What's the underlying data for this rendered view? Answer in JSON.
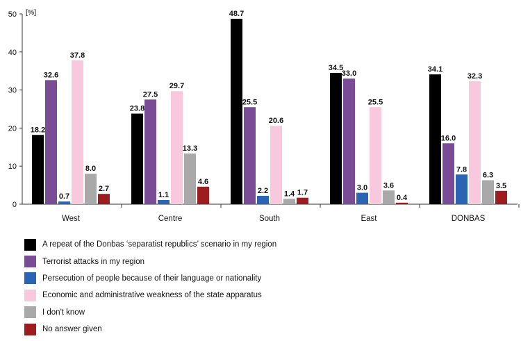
{
  "chart_data": {
    "type": "bar",
    "unit_label": "[%]",
    "categories": [
      "West",
      "Centre",
      "South",
      "East",
      "DONBAS"
    ],
    "ylim": [
      0,
      50
    ],
    "yticks": [
      0,
      10,
      20,
      30,
      40,
      50
    ],
    "grid": false,
    "legend_position": "bottom",
    "series": [
      {
        "name": "A repeat of the Donbas ‘separatist republics’ scenario in my region",
        "color": "#000000",
        "values": [
          18.2,
          23.8,
          48.7,
          34.5,
          34.1
        ]
      },
      {
        "name": "Terrorist attacks in my region",
        "color": "#7a4c96",
        "values": [
          32.6,
          27.5,
          25.5,
          33.0,
          16.0
        ]
      },
      {
        "name": "Persecution of people because of their language or nationality",
        "color": "#2a64b2",
        "values": [
          0.7,
          1.1,
          2.2,
          3.0,
          7.8
        ]
      },
      {
        "name": "Economic and administrative weakness of the state apparatus",
        "color": "#f8c8dc",
        "values": [
          37.8,
          29.7,
          20.6,
          25.5,
          32.3
        ]
      },
      {
        "name": "I don't know",
        "color": "#a9a9a9",
        "values": [
          8.0,
          13.3,
          1.4,
          3.6,
          6.3
        ]
      },
      {
        "name": "No answer given",
        "color": "#9c1c20",
        "values": [
          2.7,
          4.6,
          1.7,
          0.4,
          3.5
        ]
      }
    ]
  }
}
